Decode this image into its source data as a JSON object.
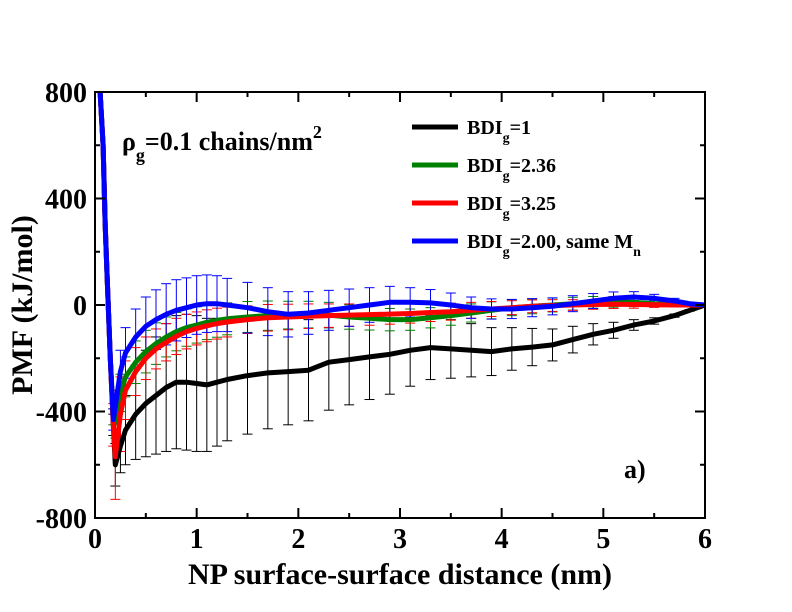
{
  "chart_data": {
    "type": "line",
    "title": "",
    "xlabel": "NP surface-surface distance (nm)",
    "ylabel": "PMF (kJ/mol)",
    "xlim": [
      0,
      6
    ],
    "ylim": [
      -800,
      800
    ],
    "xticks": [
      0,
      1,
      2,
      3,
      4,
      5,
      6
    ],
    "yticks": [
      -800,
      -400,
      0,
      400,
      800
    ],
    "xtick_labels": [
      "0",
      "1",
      "2",
      "3",
      "4",
      "5",
      "6"
    ],
    "ytick_labels": [
      "-800",
      "-400",
      "0",
      "400",
      "800"
    ],
    "grid": false,
    "legend_position": "top-right",
    "annotation": {
      "rho_symbol": "ρ",
      "rho_sub": "g",
      "rho_text": "=0.1 chains/nm",
      "rho_sup": "2",
      "panel_label": "a)"
    },
    "series": [
      {
        "name": "BDIg=1",
        "label_main": "BDI",
        "label_sub": "g",
        "label_rest": "=1",
        "label_sub2": "",
        "color": "#000000",
        "x": [
          0.05,
          0.08,
          0.1,
          0.12,
          0.15,
          0.18,
          0.2,
          0.25,
          0.3,
          0.4,
          0.5,
          0.6,
          0.7,
          0.8,
          0.9,
          1.0,
          1.1,
          1.2,
          1.3,
          1.5,
          1.7,
          1.9,
          2.1,
          2.3,
          2.5,
          2.7,
          2.9,
          3.1,
          3.3,
          3.5,
          3.7,
          3.9,
          4.1,
          4.3,
          4.5,
          4.7,
          4.9,
          5.1,
          5.3,
          5.5,
          5.7,
          5.85,
          6.0
        ],
        "y": [
          800,
          600,
          300,
          100,
          -200,
          -450,
          -600,
          -530,
          -470,
          -410,
          -370,
          -340,
          -310,
          -290,
          -290,
          -295,
          -300,
          -290,
          -280,
          -265,
          -255,
          -250,
          -245,
          -215,
          -205,
          -195,
          -185,
          -170,
          -160,
          -165,
          -170,
          -175,
          -165,
          -158,
          -150,
          -130,
          -110,
          -95,
          -75,
          -60,
          -40,
          -20,
          0
        ],
        "err": [
          0,
          0,
          0,
          0,
          0,
          40,
          80,
          100,
          130,
          170,
          200,
          220,
          240,
          250,
          255,
          255,
          250,
          240,
          230,
          220,
          210,
          200,
          190,
          180,
          170,
          160,
          150,
          135,
          120,
          110,
          100,
          90,
          80,
          70,
          60,
          50,
          40,
          30,
          20,
          12,
          6,
          3,
          0
        ]
      },
      {
        "name": "BDIg=2.36",
        "label_main": "BDI",
        "label_sub": "g",
        "label_rest": "=2.36",
        "label_sub2": "",
        "color": "#008000",
        "x": [
          0.05,
          0.08,
          0.1,
          0.12,
          0.15,
          0.18,
          0.2,
          0.25,
          0.3,
          0.4,
          0.5,
          0.6,
          0.7,
          0.8,
          0.9,
          1.0,
          1.1,
          1.2,
          1.3,
          1.5,
          1.7,
          1.9,
          2.1,
          2.3,
          2.5,
          2.7,
          2.9,
          3.1,
          3.3,
          3.5,
          3.7,
          3.9,
          4.1,
          4.3,
          4.5,
          4.7,
          4.9,
          5.1,
          5.3,
          5.5,
          5.7,
          5.85,
          6.0
        ],
        "y": [
          800,
          600,
          300,
          100,
          -200,
          -420,
          -440,
          -330,
          -270,
          -215,
          -175,
          -145,
          -120,
          -100,
          -85,
          -75,
          -65,
          -58,
          -52,
          -45,
          -40,
          -38,
          -36,
          -38,
          -45,
          -50,
          -55,
          -55,
          -48,
          -40,
          -30,
          -20,
          -10,
          -5,
          0,
          5,
          10,
          12,
          10,
          5,
          2,
          1,
          0
        ],
        "err": [
          0,
          0,
          0,
          0,
          0,
          30,
          60,
          70,
          75,
          80,
          80,
          78,
          75,
          72,
          70,
          68,
          65,
          63,
          60,
          58,
          55,
          52,
          50,
          48,
          46,
          44,
          42,
          40,
          38,
          36,
          34,
          32,
          30,
          28,
          26,
          24,
          22,
          20,
          16,
          12,
          8,
          4,
          0
        ]
      },
      {
        "name": "BDIg=3.25",
        "label_main": "BDI",
        "label_sub": "g",
        "label_rest": "=3.25",
        "label_sub2": "",
        "color": "#ff0000",
        "x": [
          0.05,
          0.08,
          0.1,
          0.12,
          0.15,
          0.18,
          0.2,
          0.25,
          0.3,
          0.4,
          0.5,
          0.6,
          0.7,
          0.8,
          0.9,
          1.0,
          1.1,
          1.2,
          1.3,
          1.5,
          1.7,
          1.9,
          2.1,
          2.3,
          2.5,
          2.7,
          2.9,
          3.1,
          3.3,
          3.5,
          3.7,
          3.9,
          4.1,
          4.3,
          4.5,
          4.7,
          4.9,
          5.1,
          5.3,
          5.5,
          5.7,
          5.85,
          6.0
        ],
        "y": [
          800,
          600,
          300,
          100,
          -200,
          -450,
          -570,
          -410,
          -320,
          -250,
          -200,
          -165,
          -140,
          -118,
          -100,
          -88,
          -78,
          -70,
          -64,
          -55,
          -48,
          -45,
          -42,
          -40,
          -38,
          -36,
          -34,
          -32,
          -28,
          -25,
          -20,
          -15,
          -10,
          -5,
          -2,
          0,
          2,
          3,
          2,
          1,
          0,
          0,
          0
        ],
        "err": [
          0,
          0,
          0,
          0,
          0,
          80,
          160,
          140,
          110,
          90,
          80,
          75,
          70,
          68,
          65,
          62,
          60,
          58,
          56,
          52,
          50,
          48,
          46,
          44,
          42,
          40,
          38,
          36,
          34,
          32,
          30,
          28,
          26,
          24,
          22,
          20,
          18,
          16,
          14,
          10,
          6,
          3,
          0
        ]
      },
      {
        "name": "BDIg=2.00, same Mn",
        "label_main": "BDI",
        "label_sub": "g",
        "label_rest": "=2.00, same M",
        "label_sub2": "n",
        "color": "#0000ff",
        "x": [
          0.05,
          0.08,
          0.1,
          0.12,
          0.15,
          0.18,
          0.2,
          0.25,
          0.3,
          0.4,
          0.5,
          0.6,
          0.7,
          0.8,
          0.9,
          1.0,
          1.1,
          1.2,
          1.3,
          1.5,
          1.7,
          1.9,
          2.1,
          2.3,
          2.5,
          2.7,
          2.9,
          3.1,
          3.3,
          3.5,
          3.7,
          3.9,
          4.1,
          4.3,
          4.5,
          4.7,
          4.9,
          5.1,
          5.3,
          5.5,
          5.7,
          5.85,
          6.0
        ],
        "y": [
          800,
          600,
          300,
          100,
          -200,
          -430,
          -380,
          -250,
          -180,
          -120,
          -80,
          -55,
          -35,
          -20,
          -10,
          0,
          5,
          5,
          0,
          -10,
          -25,
          -35,
          -30,
          -20,
          -10,
          0,
          10,
          10,
          8,
          0,
          -10,
          -15,
          -15,
          -10,
          -5,
          5,
          15,
          25,
          30,
          25,
          15,
          5,
          0
        ],
        "err": [
          0,
          0,
          0,
          0,
          0,
          40,
          60,
          80,
          95,
          105,
          110,
          112,
          115,
          115,
          112,
          110,
          108,
          105,
          100,
          95,
          90,
          85,
          80,
          75,
          70,
          65,
          60,
          55,
          50,
          45,
          40,
          38,
          36,
          34,
          32,
          30,
          28,
          24,
          20,
          15,
          10,
          5,
          0
        ]
      }
    ]
  }
}
